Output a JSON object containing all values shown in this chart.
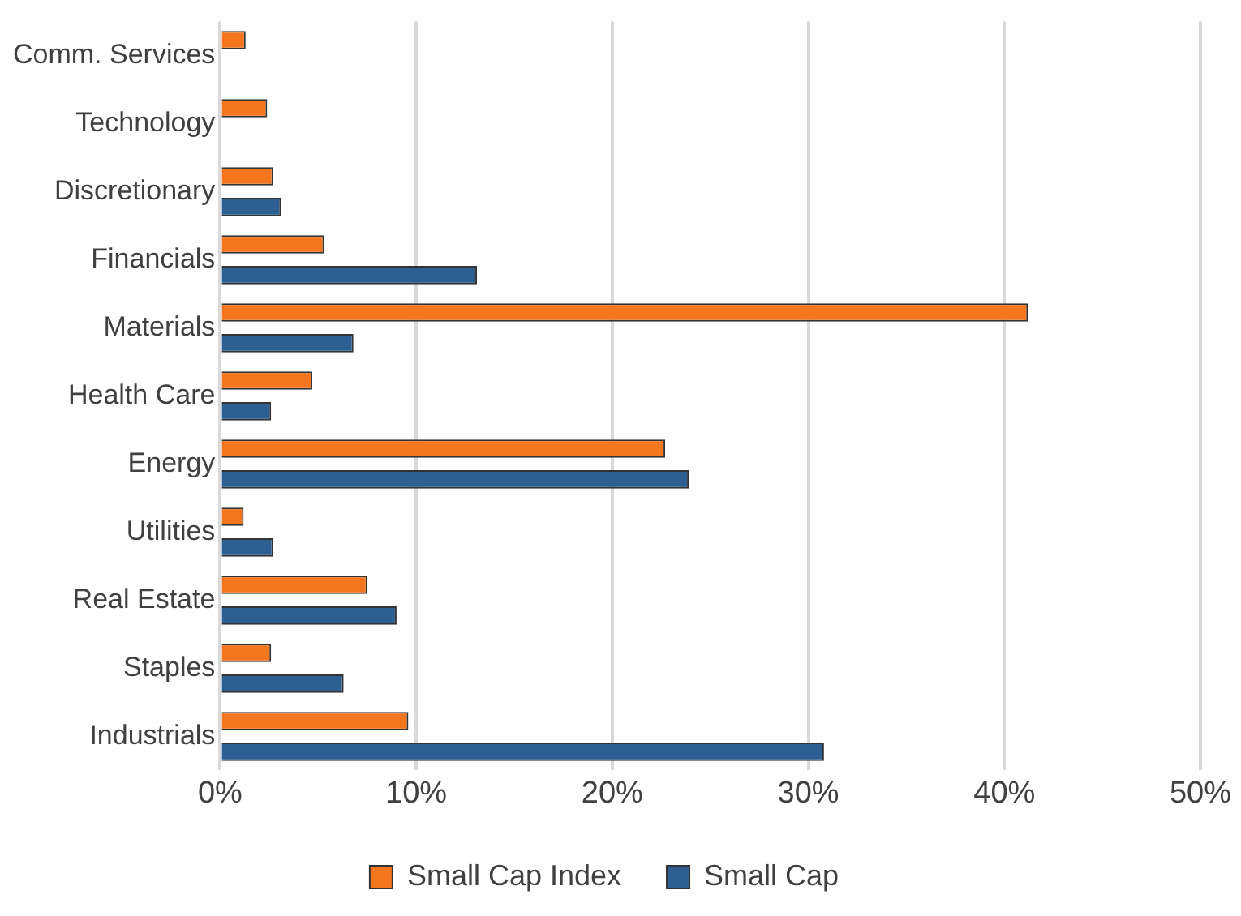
{
  "chart_data": {
    "type": "bar",
    "orientation": "horizontal",
    "categories": [
      "Comm. Services",
      "Technology",
      "Discretionary",
      "Financials",
      "Materials",
      "Health Care",
      "Energy",
      "Utilities",
      "Real Estate",
      "Staples",
      "Industrials"
    ],
    "series": [
      {
        "name": "Small Cap Index",
        "color": "#f4761f",
        "values": [
          1.3,
          2.4,
          2.7,
          5.3,
          41.2,
          4.7,
          22.7,
          1.2,
          7.5,
          2.6,
          9.6
        ]
      },
      {
        "name": "Small Cap",
        "color": "#2e5f93",
        "values": [
          null,
          null,
          3.1,
          13.1,
          6.8,
          2.6,
          23.9,
          2.7,
          9.0,
          6.3,
          30.8
        ]
      }
    ],
    "xlim": [
      0,
      50
    ],
    "xticks": [
      {
        "value": 0,
        "label": "0%"
      },
      {
        "value": 10,
        "label": "10%"
      },
      {
        "value": 20,
        "label": "20%"
      },
      {
        "value": 30,
        "label": "30%"
      },
      {
        "value": 40,
        "label": "40%"
      },
      {
        "value": 50,
        "label": "50%"
      }
    ],
    "grid": "x",
    "legend": "bottom"
  }
}
